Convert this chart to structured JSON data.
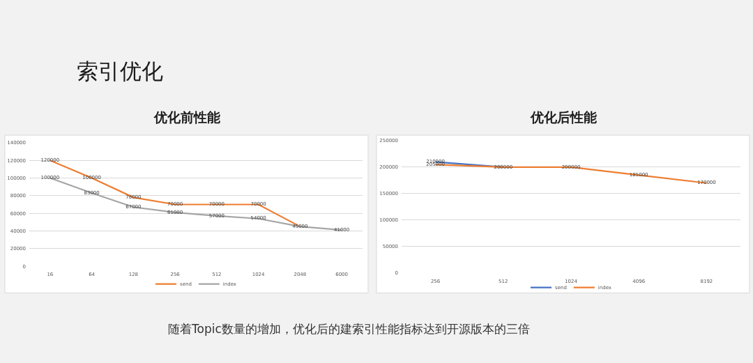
{
  "chart_data": [
    {
      "type": "line",
      "title": "优化前性能",
      "annotations": [
        "索引优化"
      ],
      "categories": [
        "16",
        "64",
        "128",
        "256",
        "512",
        "1024",
        "2048",
        "6000"
      ],
      "series": [
        {
          "name": "send",
          "color": "#ed7d31",
          "values": [
            120000,
            100000,
            78000,
            70000,
            70000,
            70000,
            45000,
            null
          ],
          "value_labels": [
            "120000",
            "100000",
            "78000",
            "70000",
            "70000",
            "70000",
            null,
            null
          ]
        },
        {
          "name": "index",
          "color": "#a5a5a5",
          "values": [
            100000,
            83000,
            67000,
            61000,
            57000,
            54000,
            45000,
            41000
          ]
        }
      ],
      "ylim": [
        0,
        140000
      ],
      "yticks": [
        0,
        20000,
        40000,
        60000,
        80000,
        100000,
        120000,
        140000
      ],
      "grid": "y",
      "legend": "bottom",
      "data_labels": true
    },
    {
      "type": "line",
      "title": "优化后性能",
      "annotations": [
        "随着Topic数量的增加，优化后的建索引性能指标达到开源版本的三倍"
      ],
      "categories": [
        "256",
        "512",
        "1024",
        "4096",
        "8192"
      ],
      "series": [
        {
          "name": "send",
          "color": "#4472c4",
          "values": [
            210000,
            200000,
            null,
            null,
            null
          ],
          "value_labels": [
            "210000",
            null,
            null,
            null,
            null
          ]
        },
        {
          "name": "index",
          "color": "#ed7d31",
          "values": [
            205000,
            200000,
            200000,
            185000,
            170000
          ]
        }
      ],
      "ylim": [
        0,
        250000
      ],
      "yticks": [
        0,
        50000,
        100000,
        150000,
        200000,
        250000
      ],
      "grid": "y",
      "legend": "bottom",
      "data_labels": true
    }
  ]
}
